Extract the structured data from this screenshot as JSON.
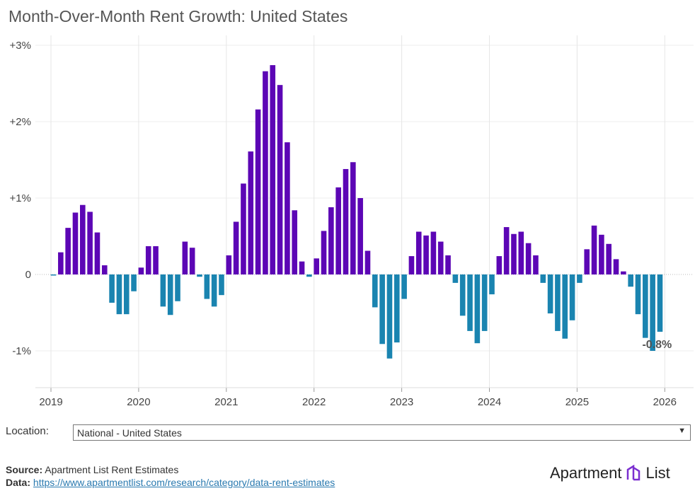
{
  "title": "Month-Over-Month Rent Growth: United States",
  "chart_data": {
    "type": "bar",
    "title": "Month-Over-Month Rent Growth: United States",
    "x_ticks": [
      "2019",
      "2020",
      "2021",
      "2022",
      "2023",
      "2024",
      "2025",
      "2026"
    ],
    "y_ticks": [
      {
        "v": 3,
        "label": "+3%"
      },
      {
        "v": 2,
        "label": "+2%"
      },
      {
        "v": 1,
        "label": "+1%"
      },
      {
        "v": 0,
        "label": "0"
      },
      {
        "v": -1,
        "label": "-1%"
      }
    ],
    "ylim": [
      -1.45,
      3.1
    ],
    "start": "2019-01",
    "frequency": "monthly",
    "unit": "%",
    "values": [
      -0.01,
      0.29,
      0.61,
      0.81,
      0.91,
      0.82,
      0.55,
      0.12,
      -0.37,
      -0.52,
      -0.52,
      -0.22,
      0.09,
      0.37,
      0.37,
      -0.42,
      -0.53,
      -0.35,
      0.43,
      0.35,
      -0.03,
      -0.32,
      -0.42,
      -0.27,
      0.25,
      0.69,
      1.19,
      1.61,
      2.16,
      2.66,
      2.74,
      2.48,
      1.73,
      0.84,
      0.17,
      -0.03,
      0.21,
      0.57,
      0.88,
      1.14,
      1.38,
      1.47,
      1.0,
      0.31,
      -0.43,
      -0.91,
      -1.1,
      -0.89,
      -0.32,
      0.24,
      0.56,
      0.51,
      0.56,
      0.43,
      0.25,
      -0.11,
      -0.54,
      -0.74,
      -0.9,
      -0.74,
      -0.26,
      0.24,
      0.62,
      0.53,
      0.56,
      0.41,
      0.25,
      -0.11,
      -0.51,
      -0.74,
      -0.84,
      -0.6,
      -0.11,
      0.33,
      0.64,
      0.52,
      0.4,
      0.2,
      0.04,
      -0.16,
      -0.52,
      -0.83,
      -1.0,
      -0.75
    ],
    "last_label": "-0.8%",
    "colors": {
      "positive": "#5c06b5",
      "negative": "#1a84b0"
    },
    "grid": true,
    "legend": "none"
  },
  "location": {
    "label": "Location:",
    "value": "National - United States"
  },
  "source": {
    "label": "Source:",
    "text": "Apartment List Rent Estimates",
    "data_label": "Data:",
    "url": "https://www.apartmentlist.com/research/category/data-rent-estimates"
  },
  "logo": {
    "text1": "Apartment",
    "text2": "List"
  }
}
